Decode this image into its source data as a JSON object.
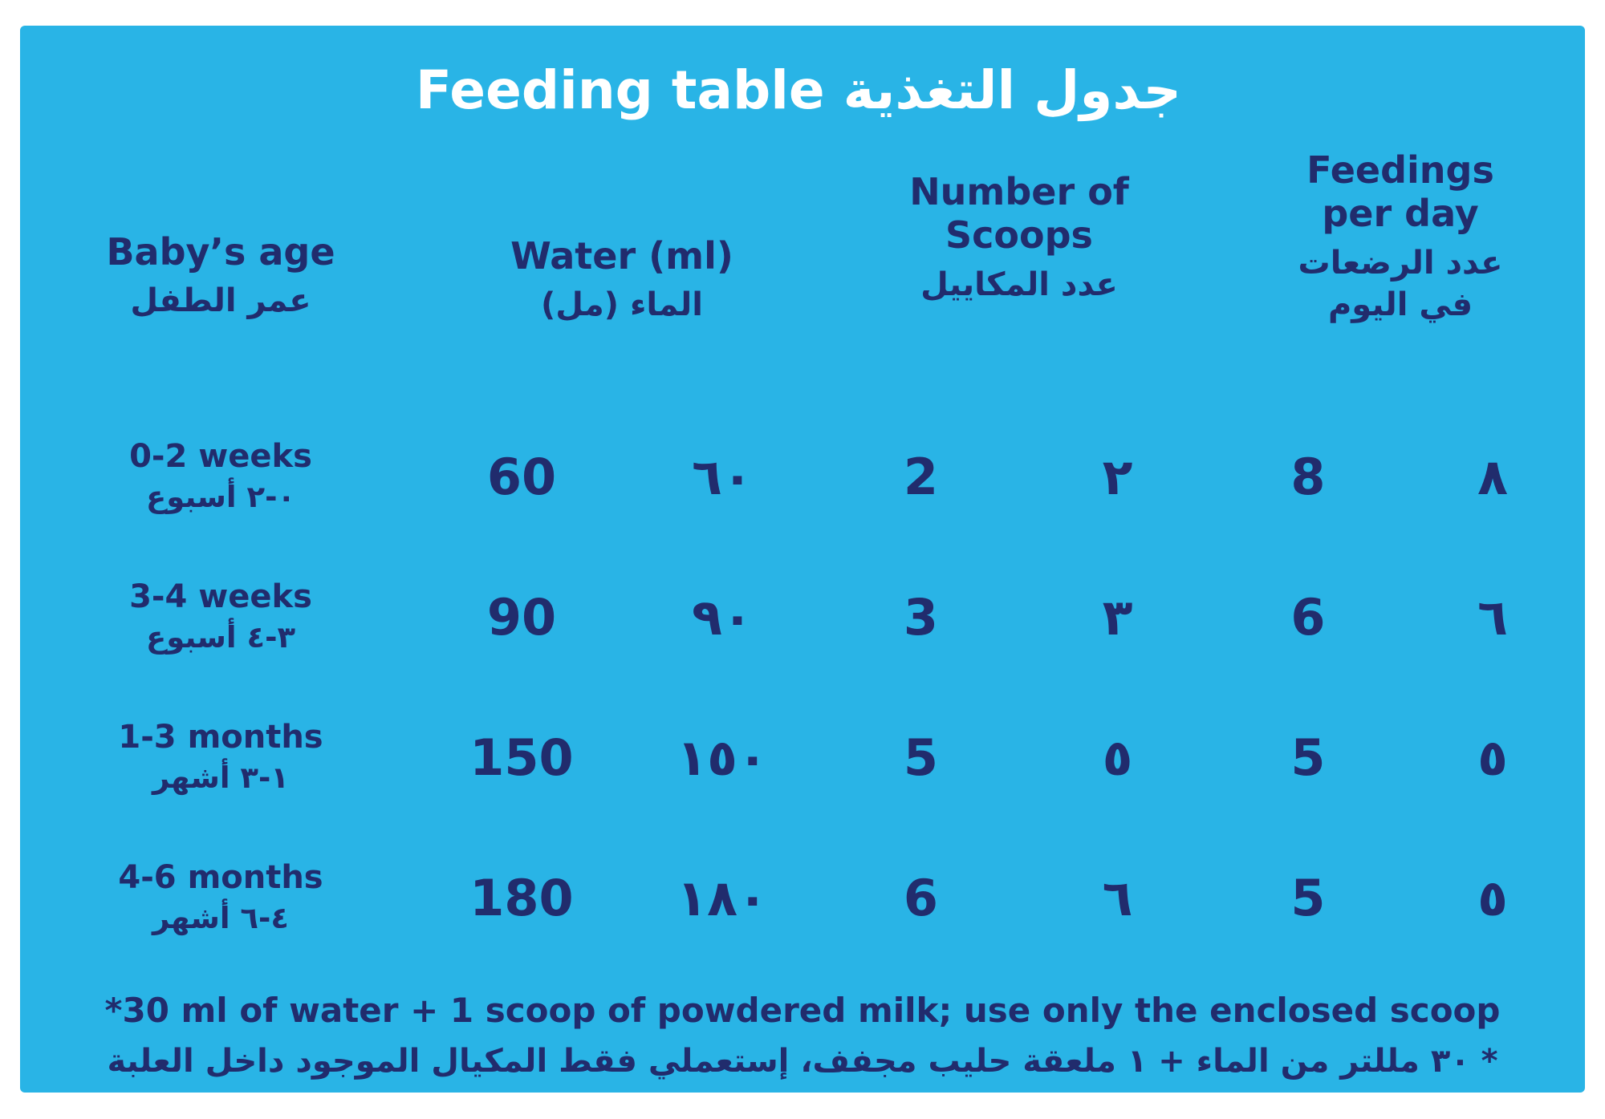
{
  "title": {
    "en": "Feeding table",
    "ar": "جدول التغذية"
  },
  "colors": {
    "card_background": "#29B4E6",
    "title_text": "#FFFFFF",
    "body_text": "#212C6D"
  },
  "columns": {
    "age": {
      "en": "Baby’s age",
      "ar": "عمر الطفل"
    },
    "water": {
      "en": "Water (ml)",
      "ar": "الماء (مل)"
    },
    "scoops": {
      "en_line1": "Number of",
      "en_line2": "Scoops",
      "ar": "عدد المكاييل"
    },
    "feedings": {
      "en_line1": "Feedings",
      "en_line2": "per day",
      "ar_line1": "عدد الرضعات",
      "ar_line2": "في اليوم"
    }
  },
  "rows": [
    {
      "age_en": "0-2 weeks",
      "age_ar": "٠-٢ أسبوع",
      "water_en": "60",
      "water_ar": "٦٠",
      "scoops_en": "2",
      "scoops_ar": "٢",
      "feedings_en": "8",
      "feedings_ar": "٨"
    },
    {
      "age_en": "3-4 weeks",
      "age_ar": "٣-٤ أسبوع",
      "water_en": "90",
      "water_ar": "٩٠",
      "scoops_en": "3",
      "scoops_ar": "٣",
      "feedings_en": "6",
      "feedings_ar": "٦"
    },
    {
      "age_en": "1-3 months",
      "age_ar": "١-٣ أشهر",
      "water_en": "150",
      "water_ar": "١٥٠",
      "scoops_en": "5",
      "scoops_ar": "٥",
      "feedings_en": "5",
      "feedings_ar": "٥"
    },
    {
      "age_en": "4-6 months",
      "age_ar": "٤-٦ أشهر",
      "water_en": "180",
      "water_ar": "١٨٠",
      "scoops_en": "6",
      "scoops_ar": "٦",
      "feedings_en": "5",
      "feedings_ar": "٥"
    }
  ],
  "footnote": {
    "en": "*30 ml of water + 1 scoop of powdered milk; use only the enclosed scoop",
    "ar": "* ٣٠ مللتر من الماء + ١ ملعقة حليب مجفف، إستعملي فقط المكيال الموجود داخل العلبة"
  }
}
